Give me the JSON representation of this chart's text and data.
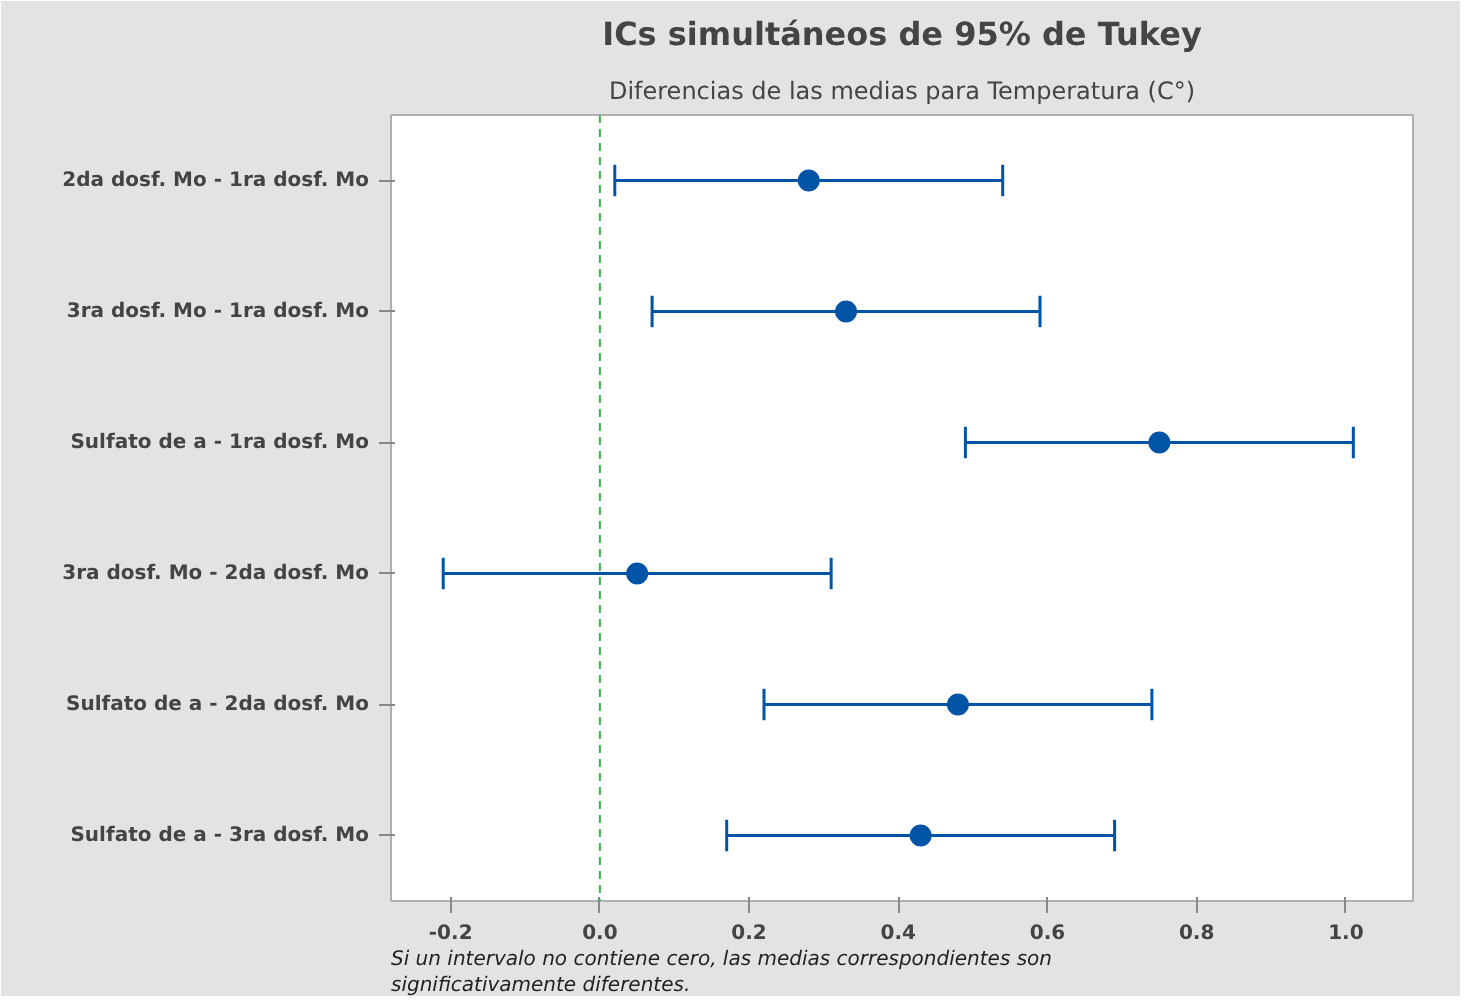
{
  "chart_data": {
    "type": "scatter",
    "orientation": "horizontal",
    "title": "ICs simultáneos de 95% de Tukey",
    "subtitle": "Diferencias de las medias para Temperatura (C°)",
    "categories": [
      "2da dosf. Mo - 1ra dosf. Mo",
      "3ra dosf. Mo - 1ra dosf. Mo",
      "Sulfato de a - 1ra dosf. Mo",
      "3ra dosf. Mo - 2da dosf. Mo",
      "Sulfato de a - 2da dosf. Mo",
      "Sulfato de a - 3ra dosf. Mo"
    ],
    "values": [
      0.28,
      0.33,
      0.75,
      0.05,
      0.48,
      0.43
    ],
    "errors": [
      0.26,
      0.26,
      0.26,
      0.26,
      0.26,
      0.26
    ],
    "color": "#0054a6",
    "marker": "circle",
    "xlim": [
      -0.28,
      1.09
    ],
    "xticks": [
      {
        "value": -0.2,
        "label": "-0.2"
      },
      {
        "value": 0,
        "label": "0.0"
      },
      {
        "value": 0.2,
        "label": "0.2"
      },
      {
        "value": 0.4,
        "label": "0.4"
      },
      {
        "value": 0.6,
        "label": "0.6"
      },
      {
        "value": 0.8,
        "label": "0.8"
      },
      {
        "value": 1,
        "label": "1.0"
      }
    ],
    "ref_lines": [
      {
        "axis": "x",
        "value": 0,
        "color": "#3cb44b",
        "line_style": "dashed"
      }
    ],
    "grid": false,
    "annotations": [
      "Si un intervalo no contiene cero, las medias correspondientes son significativamente diferentes."
    ]
  }
}
